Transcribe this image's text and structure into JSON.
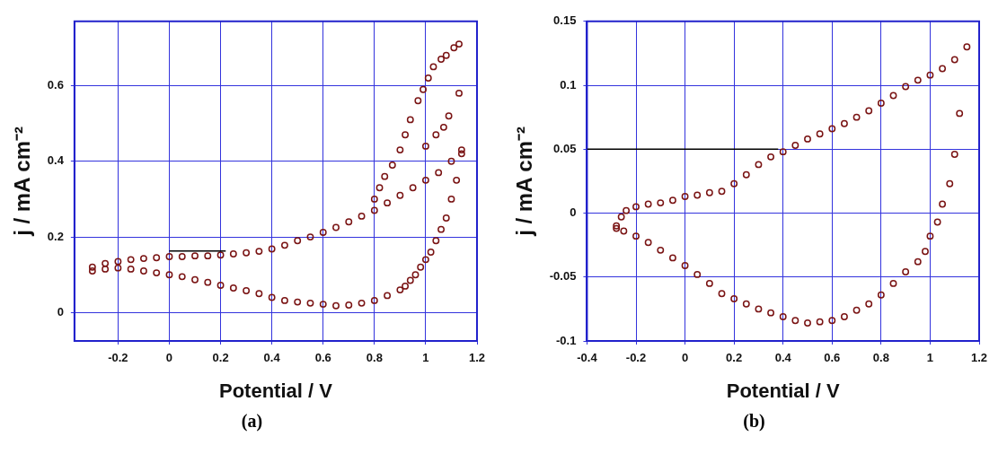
{
  "chart_data": [
    {
      "type": "scatter",
      "xlabel": "Potential / V",
      "ylabel": "j / mA cm⁻²",
      "annotations": [
        "(a)"
      ],
      "xlim": [
        -0.37,
        1.2
      ],
      "xticks": [
        -0.2,
        0,
        0.2,
        0.4,
        0.6,
        0.8,
        1,
        1.2
      ],
      "ylim": [
        -0.075,
        0.77
      ],
      "yticks": [
        0,
        0.2,
        0.4,
        0.6
      ],
      "grid": true,
      "legend": false,
      "marker": "circle",
      "series": [
        {
          "color": "#7a1414",
          "x": [
            -0.3,
            -0.25,
            -0.2,
            -0.15,
            -0.1,
            -0.05,
            0,
            0.05,
            0.1,
            0.15,
            0.2,
            0.25,
            0.3,
            0.35,
            0.4,
            0.45,
            0.5,
            0.55,
            0.6,
            0.65,
            0.7,
            0.75,
            0.8,
            0.85,
            0.9,
            0.95,
            1.0,
            1.05,
            1.1,
            1.14
          ],
          "values": [
            0.12,
            0.13,
            0.135,
            0.14,
            0.143,
            0.145,
            0.148,
            0.148,
            0.15,
            0.15,
            0.152,
            0.155,
            0.158,
            0.162,
            0.168,
            0.178,
            0.19,
            0.2,
            0.212,
            0.225,
            0.24,
            0.255,
            0.27,
            0.29,
            0.31,
            0.33,
            0.35,
            0.37,
            0.4,
            0.43
          ]
        },
        {
          "color": "#7a1414",
          "x": [
            0.8,
            0.82,
            0.84,
            0.87,
            0.9,
            0.92,
            0.94,
            0.97,
            0.99,
            1.01,
            1.03,
            1.06,
            1.08,
            1.11,
            1.13,
            1.0,
            1.04,
            1.07,
            1.09,
            1.13
          ],
          "values": [
            0.3,
            0.33,
            0.36,
            0.39,
            0.43,
            0.47,
            0.51,
            0.56,
            0.59,
            0.62,
            0.65,
            0.67,
            0.68,
            0.7,
            0.71,
            0.44,
            0.47,
            0.49,
            0.52,
            0.58
          ]
        },
        {
          "color": "#7a1414",
          "x": [
            1.14,
            1.12,
            1.1,
            1.08,
            1.06,
            1.04,
            1.02,
            1.0,
            0.98,
            0.96,
            0.94,
            0.92,
            0.9,
            0.85,
            0.8,
            0.75,
            0.7,
            0.65,
            0.6,
            0.55,
            0.5,
            0.45,
            0.4,
            0.35,
            0.3,
            0.25,
            0.2,
            0.15,
            0.1,
            0.05,
            0,
            -0.05,
            -0.1,
            -0.15,
            -0.2,
            -0.25,
            -0.3
          ],
          "values": [
            0.42,
            0.35,
            0.3,
            0.25,
            0.22,
            0.19,
            0.16,
            0.14,
            0.12,
            0.1,
            0.085,
            0.07,
            0.06,
            0.045,
            0.032,
            0.025,
            0.02,
            0.018,
            0.022,
            0.025,
            0.028,
            0.032,
            0.04,
            0.05,
            0.058,
            0.065,
            0.072,
            0.08,
            0.087,
            0.095,
            0.1,
            0.105,
            0.11,
            0.115,
            0.118,
            0.115,
            0.11
          ]
        },
        {
          "type": "line",
          "color": "#000000",
          "marker": "none",
          "x": [
            0,
            0.22
          ],
          "values": [
            0.163,
            0.163
          ]
        }
      ]
    },
    {
      "type": "scatter",
      "xlabel": "Potential / V",
      "ylabel": "j / mA cm⁻²",
      "annotations": [
        "(b)"
      ],
      "xlim": [
        -0.4,
        1.2
      ],
      "xticks": [
        -0.4,
        -0.2,
        0,
        0.2,
        0.4,
        0.6,
        0.8,
        1,
        1.2
      ],
      "ylim": [
        -0.1,
        0.15
      ],
      "yticks": [
        -0.1,
        -0.05,
        0,
        0.05,
        0.1,
        0.15
      ],
      "grid": true,
      "legend": false,
      "marker": "circle",
      "series": [
        {
          "color": "#7a1414",
          "x": [
            -0.28,
            -0.26,
            -0.24,
            -0.2,
            -0.15,
            -0.1,
            -0.05,
            0,
            0.05,
            0.1,
            0.15,
            0.2,
            0.25,
            0.3,
            0.35,
            0.4,
            0.45,
            0.5,
            0.55,
            0.6,
            0.65,
            0.7,
            0.75,
            0.8,
            0.85,
            0.9,
            0.95,
            1.0,
            1.05,
            1.1,
            1.15
          ],
          "values": [
            -0.01,
            -0.003,
            0.002,
            0.005,
            0.007,
            0.008,
            0.01,
            0.013,
            0.014,
            0.016,
            0.017,
            0.023,
            0.03,
            0.038,
            0.044,
            0.048,
            0.053,
            0.058,
            0.062,
            0.066,
            0.07,
            0.075,
            0.08,
            0.086,
            0.092,
            0.099,
            0.104,
            0.108,
            0.113,
            0.12,
            0.13
          ]
        },
        {
          "color": "#7a1414",
          "x": [
            1.12,
            1.1,
            1.08,
            1.05,
            1.03,
            1.0,
            0.98,
            0.95,
            0.9,
            0.85,
            0.8,
            0.75,
            0.7,
            0.65,
            0.6,
            0.55,
            0.5,
            0.45,
            0.4,
            0.35,
            0.3,
            0.25,
            0.2,
            0.15,
            0.1,
            0.05,
            0,
            -0.05,
            -0.1,
            -0.15,
            -0.2,
            -0.25,
            -0.28
          ],
          "values": [
            0.078,
            0.046,
            0.023,
            0.007,
            -0.007,
            -0.018,
            -0.03,
            -0.038,
            -0.046,
            -0.055,
            -0.064,
            -0.071,
            -0.076,
            -0.081,
            -0.084,
            -0.085,
            -0.086,
            -0.084,
            -0.081,
            -0.078,
            -0.075,
            -0.071,
            -0.067,
            -0.063,
            -0.055,
            -0.048,
            -0.041,
            -0.035,
            -0.029,
            -0.023,
            -0.018,
            -0.014,
            -0.012
          ]
        },
        {
          "type": "line",
          "color": "#000000",
          "marker": "none",
          "x": [
            -0.4,
            0.38
          ],
          "values": [
            0.05,
            0.05
          ]
        }
      ]
    }
  ]
}
